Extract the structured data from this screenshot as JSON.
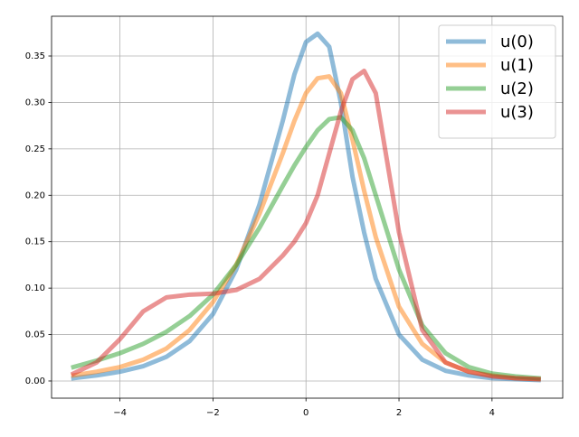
{
  "chart_data": {
    "type": "line",
    "x": [
      -5,
      -4.5,
      -4,
      -3.5,
      -3,
      -2.5,
      -2,
      -1.5,
      -1,
      -0.5,
      -0.25,
      0,
      0.25,
      0.5,
      0.75,
      1,
      1.25,
      1.5,
      2,
      2.5,
      3,
      3.5,
      4,
      4.5,
      5
    ],
    "series": [
      {
        "name": "u(0)",
        "color": "#1f77b4",
        "values": [
          0.003,
          0.006,
          0.01,
          0.016,
          0.026,
          0.043,
          0.072,
          0.12,
          0.19,
          0.28,
          0.33,
          0.365,
          0.374,
          0.36,
          0.3,
          0.22,
          0.16,
          0.11,
          0.05,
          0.023,
          0.011,
          0.006,
          0.003,
          0.002,
          0.001
        ]
      },
      {
        "name": "u(1)",
        "color": "#ff7f0e",
        "values": [
          0.006,
          0.01,
          0.015,
          0.023,
          0.035,
          0.055,
          0.085,
          0.125,
          0.18,
          0.245,
          0.28,
          0.31,
          0.326,
          0.328,
          0.31,
          0.26,
          0.205,
          0.155,
          0.08,
          0.04,
          0.02,
          0.01,
          0.006,
          0.003,
          0.002
        ]
      },
      {
        "name": "u(2)",
        "color": "#2ca02c",
        "values": [
          0.015,
          0.022,
          0.03,
          0.04,
          0.053,
          0.07,
          0.093,
          0.125,
          0.165,
          0.21,
          0.232,
          0.252,
          0.27,
          0.282,
          0.284,
          0.27,
          0.24,
          0.2,
          0.12,
          0.06,
          0.03,
          0.015,
          0.008,
          0.005,
          0.003
        ]
      },
      {
        "name": "u(3)",
        "color": "#d62728",
        "values": [
          0.008,
          0.02,
          0.045,
          0.075,
          0.09,
          0.093,
          0.094,
          0.098,
          0.11,
          0.135,
          0.15,
          0.17,
          0.2,
          0.245,
          0.29,
          0.325,
          0.334,
          0.31,
          0.16,
          0.055,
          0.02,
          0.01,
          0.005,
          0.003,
          0.002
        ]
      }
    ],
    "xlim": [
      -5.47,
      5.52
    ],
    "ylim": [
      -0.0185,
      0.3928
    ],
    "xticks": [
      {
        "value": -4,
        "label": "−4"
      },
      {
        "value": -2,
        "label": "−2"
      },
      0,
      2,
      4
    ],
    "yticks": [
      {
        "value": 0,
        "label": "0.00"
      },
      {
        "value": 0.05,
        "label": "0.05"
      },
      {
        "value": 0.1,
        "label": "0.10"
      },
      {
        "value": 0.15,
        "label": "0.15"
      },
      {
        "value": 0.2,
        "label": "0.20"
      },
      {
        "value": 0.25,
        "label": "0.25"
      },
      {
        "value": 0.3,
        "label": "0.30"
      },
      {
        "value": 0.35,
        "label": "0.35"
      }
    ],
    "grid": true,
    "legend": "upper-right",
    "line_alpha": 0.5
  }
}
